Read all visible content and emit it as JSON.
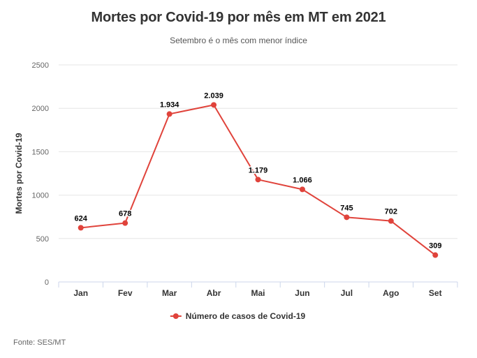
{
  "chart_data": {
    "type": "line",
    "title": "Mortes por Covid-19 por mês em MT em 2021",
    "subtitle": "Setembro é o mês com menor índice",
    "ylabel": "Mortes por Covid-19",
    "xlabel": "",
    "categories": [
      "Jan",
      "Fev",
      "Mar",
      "Abr",
      "Mai",
      "Jun",
      "Jul",
      "Ago",
      "Set"
    ],
    "series": [
      {
        "name": "Número de casos de Covid-19",
        "values": [
          624,
          678,
          1934,
          2039,
          1179,
          1066,
          745,
          702,
          309
        ],
        "labels": [
          "624",
          "678",
          "1.934",
          "2.039",
          "1.179",
          "1.066",
          "745",
          "702",
          "309"
        ],
        "color": "#e0433b"
      }
    ],
    "ylim": [
      0,
      2500
    ],
    "yticks": [
      0,
      500,
      1000,
      1500,
      2000,
      2500
    ],
    "grid": true,
    "legend_position": "bottom"
  },
  "footer": {
    "source": "Fonte: SES/MT"
  },
  "colors": {
    "series": "#e0433b",
    "grid": "#e6e6e6",
    "axis": "#ccd6eb",
    "text": "#333333",
    "muted": "#666666"
  }
}
